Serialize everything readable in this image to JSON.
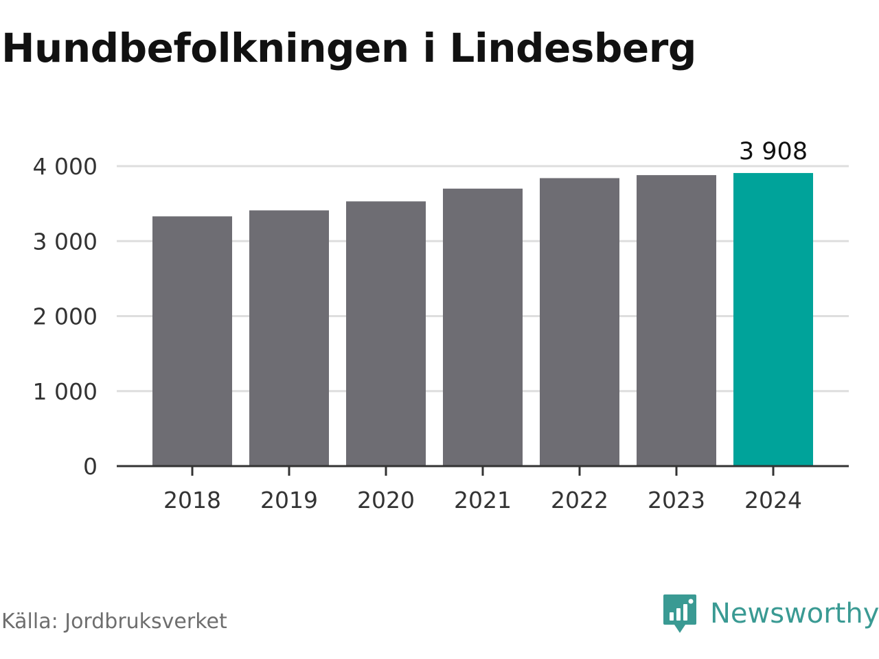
{
  "title": "Hundbefolkningen i Lindesberg",
  "source": "Källa: Jordbruksverket",
  "brand": {
    "name": "Newsworthy",
    "icon": "newsworthy-logo-icon",
    "color": "#3a9a93"
  },
  "colors": {
    "bar": "#6e6d73",
    "highlight": "#00a39a",
    "grid": "#dedede",
    "axis": "#333333"
  },
  "chart_data": {
    "type": "bar",
    "categories": [
      "2018",
      "2019",
      "2020",
      "2021",
      "2022",
      "2023",
      "2024"
    ],
    "values": [
      3330,
      3410,
      3530,
      3700,
      3840,
      3880,
      3908
    ],
    "highlight_index": 6,
    "data_labels": [
      {
        "index": 6,
        "text": "3 908"
      }
    ],
    "title": "Hundbefolkningen i Lindesberg",
    "xlabel": "",
    "ylabel": "",
    "ylim": [
      0,
      4000
    ],
    "yticks": [
      0,
      1000,
      2000,
      3000,
      4000
    ],
    "ytick_labels": [
      "0",
      "1 000",
      "2 000",
      "3 000",
      "4 000"
    ],
    "grid": true,
    "legend": "none"
  }
}
